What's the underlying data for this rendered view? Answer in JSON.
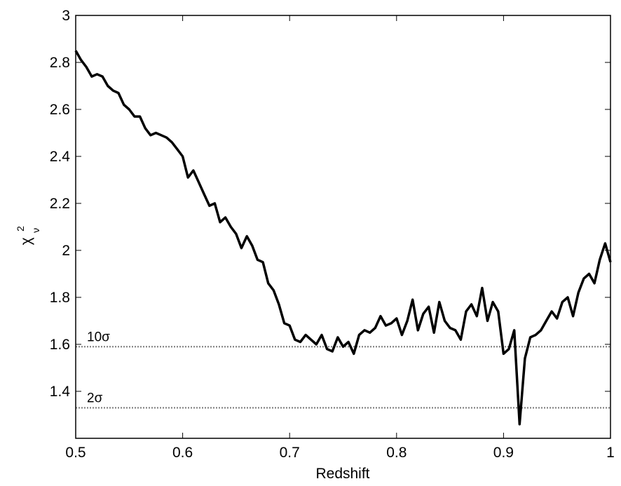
{
  "chart_data": {
    "type": "line",
    "x_label": "Redshift",
    "y_label": {
      "base": "χ",
      "sup": "2",
      "sub": "ν"
    },
    "x": [
      0.5,
      0.505,
      0.51,
      0.515,
      0.52,
      0.525,
      0.53,
      0.535,
      0.54,
      0.545,
      0.55,
      0.555,
      0.56,
      0.565,
      0.57,
      0.575,
      0.58,
      0.585,
      0.59,
      0.595,
      0.6,
      0.605,
      0.61,
      0.615,
      0.62,
      0.625,
      0.63,
      0.635,
      0.64,
      0.645,
      0.65,
      0.655,
      0.66,
      0.665,
      0.67,
      0.675,
      0.68,
      0.685,
      0.69,
      0.695,
      0.7,
      0.705,
      0.71,
      0.715,
      0.72,
      0.725,
      0.73,
      0.735,
      0.74,
      0.745,
      0.75,
      0.755,
      0.76,
      0.765,
      0.77,
      0.775,
      0.78,
      0.785,
      0.79,
      0.795,
      0.8,
      0.805,
      0.81,
      0.815,
      0.82,
      0.825,
      0.83,
      0.835,
      0.84,
      0.845,
      0.85,
      0.855,
      0.86,
      0.865,
      0.87,
      0.875,
      0.88,
      0.885,
      0.89,
      0.895,
      0.9,
      0.905,
      0.91,
      0.915,
      0.92,
      0.925,
      0.93,
      0.935,
      0.94,
      0.945,
      0.95,
      0.955,
      0.96,
      0.965,
      0.97,
      0.975,
      0.98,
      0.985,
      0.99,
      0.995,
      1.0
    ],
    "series": [
      {
        "color": "#000000",
        "values": [
          2.85,
          2.81,
          2.78,
          2.74,
          2.75,
          2.74,
          2.7,
          2.68,
          2.67,
          2.62,
          2.6,
          2.57,
          2.57,
          2.52,
          2.49,
          2.5,
          2.49,
          2.48,
          2.46,
          2.43,
          2.4,
          2.31,
          2.34,
          2.29,
          2.24,
          2.19,
          2.2,
          2.12,
          2.14,
          2.1,
          2.07,
          2.01,
          2.06,
          2.02,
          1.96,
          1.95,
          1.86,
          1.83,
          1.77,
          1.69,
          1.68,
          1.62,
          1.61,
          1.64,
          1.62,
          1.6,
          1.64,
          1.58,
          1.57,
          1.63,
          1.59,
          1.61,
          1.56,
          1.64,
          1.66,
          1.65,
          1.67,
          1.72,
          1.68,
          1.69,
          1.71,
          1.64,
          1.7,
          1.79,
          1.66,
          1.73,
          1.76,
          1.65,
          1.78,
          1.7,
          1.67,
          1.66,
          1.62,
          1.74,
          1.77,
          1.72,
          1.84,
          1.7,
          1.78,
          1.74,
          1.56,
          1.58,
          1.66,
          1.26,
          1.54,
          1.63,
          1.64,
          1.66,
          1.7,
          1.74,
          1.71,
          1.78,
          1.8,
          1.72,
          1.82,
          1.88,
          1.9,
          1.86,
          1.96,
          2.03,
          1.95
        ]
      }
    ],
    "reference_lines": [
      {
        "value": 1.59,
        "label": "10σ",
        "color": "#777777"
      },
      {
        "value": 1.33,
        "label": "2σ",
        "color": "#777777"
      }
    ],
    "xlim": [
      0.5,
      1
    ],
    "xticks": [
      0.5,
      0.6,
      0.7,
      0.8,
      0.9,
      1
    ],
    "ylim": [
      1.2,
      3
    ],
    "yticks": [
      1.4,
      1.6,
      1.8,
      2,
      2.2,
      2.4,
      2.6,
      2.8,
      3
    ]
  }
}
